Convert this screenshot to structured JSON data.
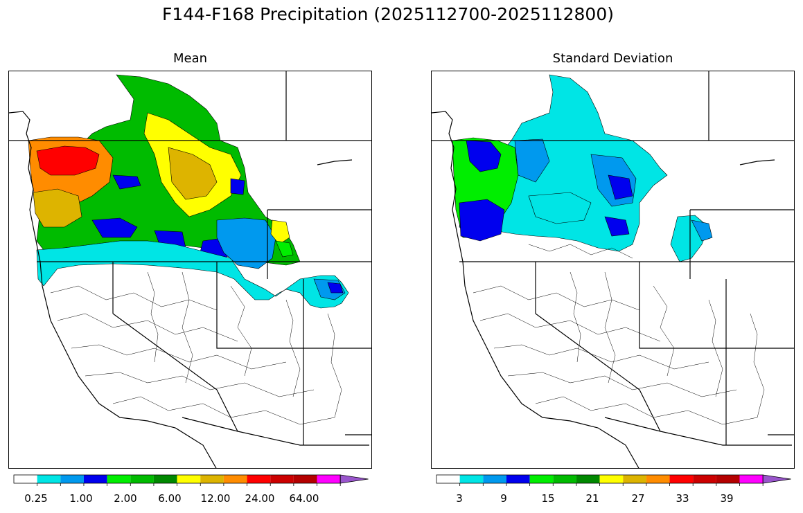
{
  "figure": {
    "title": "F144-F168 Precipitation (2025112700-2025112800)"
  },
  "panels": [
    {
      "title": "Mean",
      "colorbar": {
        "tick_labels": [
          "0.25",
          "1.00",
          "2.00",
          "6.00",
          "12.00",
          "24.00",
          "64.00"
        ],
        "colors": [
          "#ffffff",
          "#00e5e5",
          "#0099ee",
          "#0000ee",
          "#00ee00",
          "#00bb00",
          "#008800",
          "#ffff00",
          "#ddb400",
          "#ff8c00",
          "#ff0000",
          "#cc0000",
          "#b40000",
          "#ff00ff",
          "#9955cc"
        ],
        "extend": "max"
      }
    },
    {
      "title": "Standard Deviation",
      "colorbar": {
        "tick_labels": [
          "3",
          "9",
          "15",
          "21",
          "27",
          "33",
          "39"
        ],
        "colors": [
          "#ffffff",
          "#00e5e5",
          "#0099ee",
          "#0000ee",
          "#00ee00",
          "#00bb00",
          "#008800",
          "#ffff00",
          "#ddb400",
          "#ff8c00",
          "#ff0000",
          "#cc0000",
          "#b40000",
          "#ff00ff",
          "#9955cc"
        ],
        "extend": "max"
      }
    }
  ]
}
